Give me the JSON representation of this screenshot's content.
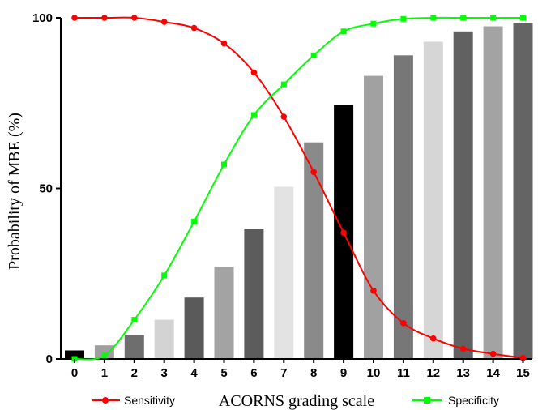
{
  "chart_data": {
    "type": "bar",
    "xlabel": "ACORNS grading scale",
    "ylabel": "Probability of MBE (%)",
    "ylim": [
      0,
      100
    ],
    "y_ticks": [
      "0",
      "50",
      "100"
    ],
    "categories": [
      "0",
      "1",
      "2",
      "3",
      "4",
      "5",
      "6",
      "7",
      "8",
      "9",
      "10",
      "11",
      "12",
      "13",
      "14",
      "15"
    ],
    "bar_values": [
      2.5,
      4,
      7,
      11.5,
      18,
      27,
      38,
      50.5,
      63.5,
      74.5,
      83,
      89,
      93,
      96,
      97.5,
      98.5
    ],
    "bar_colors": [
      "#000000",
      "#9e9e9e",
      "#6e6e6e",
      "#d3d3d3",
      "#5a5a5a",
      "#a3a3a3",
      "#5c5c5c",
      "#e3e3e3",
      "#8a8a8a",
      "#000000",
      "#a1a1a1",
      "#777777",
      "#d6d6d6",
      "#616161",
      "#a3a3a3",
      "#646464"
    ],
    "series": [
      {
        "name": "Sensitivity",
        "color": "#ff0000",
        "marker": "circle",
        "values": [
          100,
          100,
          100,
          98.8,
          97,
          92.5,
          84,
          71,
          54.8,
          37,
          20,
          10.5,
          6,
          3,
          1.5,
          0.3
        ]
      },
      {
        "name": "Specificity",
        "color": "#00ff00",
        "marker": "square",
        "values": [
          0,
          1,
          11.5,
          24.5,
          40.3,
          57,
          71.5,
          80.5,
          89,
          96,
          98.3,
          99.7,
          100,
          100,
          100,
          100
        ]
      }
    ],
    "legend_placement": "bottom"
  }
}
